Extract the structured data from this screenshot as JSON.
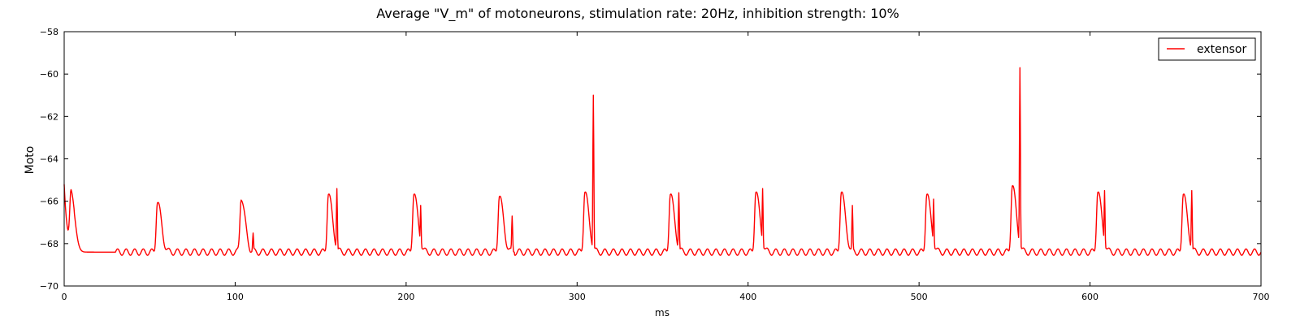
{
  "chart_data": {
    "type": "line",
    "title": "Average \"V_m\" of motoneurons, stimulation rate: 20Hz, inhibition strength: 10%",
    "xlabel": "ms",
    "ylabel": "Moto",
    "xlim": [
      0,
      700
    ],
    "ylim": [
      -70,
      -58
    ],
    "xticks": [
      0,
      100,
      200,
      300,
      400,
      500,
      600,
      700
    ],
    "yticks": [
      -70,
      -68,
      -66,
      -64,
      -62,
      -60,
      -58
    ],
    "grid": false,
    "legend_position": "top-right",
    "series": [
      {
        "name": "extensor",
        "color": "#ff0000",
        "waveform": {
          "initial_value": -65.2,
          "baseline": -68.4,
          "baseline_ripple": 0.15,
          "ripple_period_ms": 5,
          "ripple_start_ms": 30,
          "bursts": [
            {
              "t": 5.5,
              "peak": -65.8
            },
            {
              "t": 56,
              "peak": -66.0
            },
            {
              "t": 105,
              "peak": -65.8,
              "secondary": {
                "t": 110.5,
                "v": -67.5
              }
            },
            {
              "t": 156,
              "peak": -65.6,
              "secondary": {
                "t": 159.5,
                "v": -65.4
              }
            },
            {
              "t": 206,
              "peak": -65.6,
              "secondary": {
                "t": 208.5,
                "v": -66.2
              }
            },
            {
              "t": 256,
              "peak": -65.7,
              "secondary": {
                "t": 262,
                "v": -66.7
              }
            },
            {
              "t": 306,
              "peak": -65.5,
              "secondary": {
                "t": 309.5,
                "v": -61.0
              }
            },
            {
              "t": 356,
              "peak": -65.6,
              "secondary": {
                "t": 359.5,
                "v": -65.6
              }
            },
            {
              "t": 406,
              "peak": -65.5,
              "secondary": {
                "t": 408.5,
                "v": -65.4
              }
            },
            {
              "t": 456,
              "peak": -65.5,
              "secondary": {
                "t": 461,
                "v": -66.2
              }
            },
            {
              "t": 506,
              "peak": -65.6,
              "secondary": {
                "t": 508.5,
                "v": -65.9
              }
            },
            {
              "t": 556,
              "peak": -65.2,
              "secondary": {
                "t": 559,
                "v": -59.7
              }
            },
            {
              "t": 606,
              "peak": -65.5,
              "secondary": {
                "t": 608.5,
                "v": -65.5
              }
            },
            {
              "t": 656,
              "peak": -65.6,
              "secondary": {
                "t": 659.5,
                "v": -65.5
              }
            }
          ]
        }
      }
    ]
  }
}
